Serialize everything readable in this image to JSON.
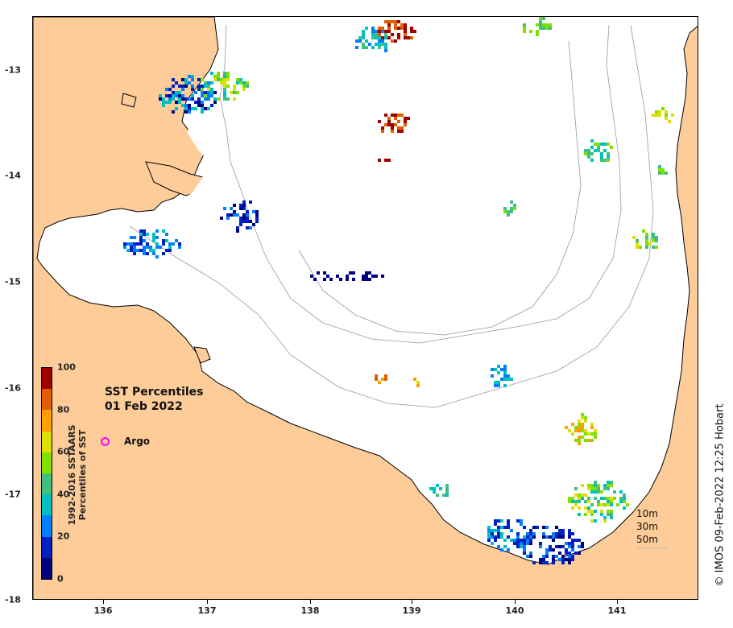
{
  "map": {
    "lon_ticks": [
      "136",
      "137",
      "138",
      "139",
      "140",
      "141"
    ],
    "lat_ticks": [
      "-13",
      "-14",
      "-15",
      "-16",
      "-17",
      "-18"
    ],
    "land_color": "#fdcc99",
    "ocean_color": "#ffffff"
  },
  "title": {
    "line1": "SST Percentiles",
    "line2": "01 Feb 2022"
  },
  "argo": {
    "label": "Argo",
    "marker_color": "#ff00ff"
  },
  "colorbar": {
    "ticks": [
      "100",
      "80",
      "60",
      "40",
      "20",
      "0"
    ],
    "title_line1": "1992-2016 SSTAARS",
    "title_line2": "Percentiles of SST",
    "colors": [
      "#00007f",
      "#0020c0",
      "#0080ff",
      "#00c0c0",
      "#40c080",
      "#80e000",
      "#e0e000",
      "#ffa000",
      "#e06000",
      "#a00000"
    ]
  },
  "depth_legend": {
    "items": [
      "10m",
      "30m",
      "50m"
    ]
  },
  "credit": "© IMOS 09-Feb-2022 12:25 Hobart"
}
